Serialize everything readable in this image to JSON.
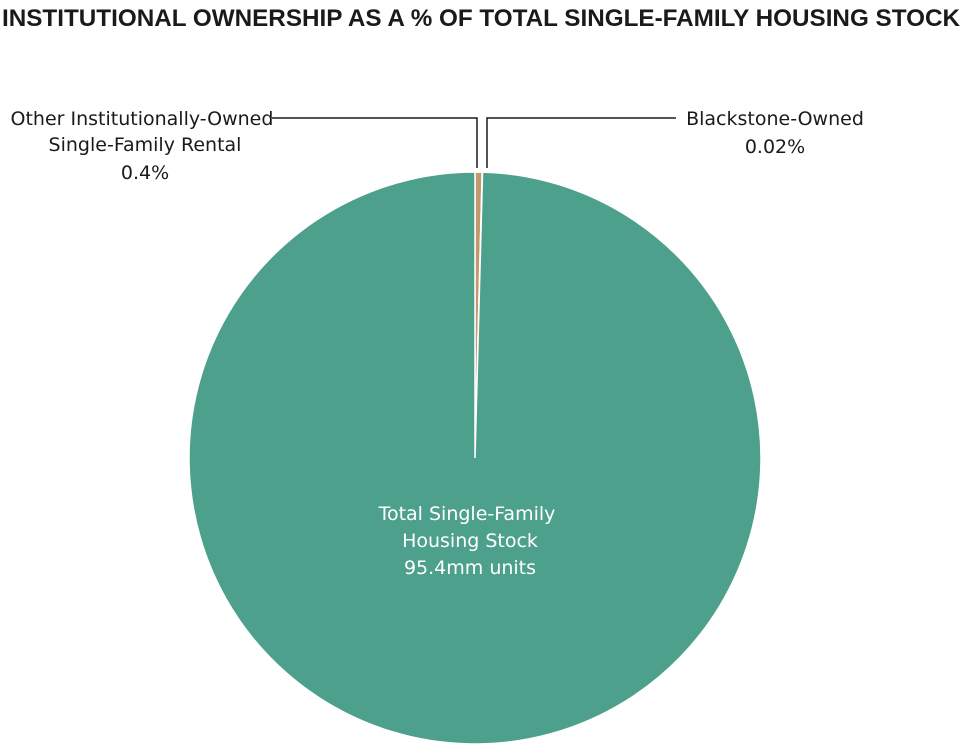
{
  "chart_data": {
    "type": "pie",
    "title": "INSTITUTIONAL OWNERSHIP AS A % OF TOTAL SINGLE-FAMILY HOUSING STOCK",
    "categories": [
      [
        "Other Institutionally-Owned",
        "Single-Family Rental"
      ],
      [
        "Blackstone-Owned"
      ],
      [
        "Total Single-Family",
        "Housing Stock"
      ]
    ],
    "values": [
      0.4,
      0.02,
      99.58
    ],
    "value_labels": [
      "0.4%",
      "0.02%",
      null
    ],
    "stock_label": "95.4mm units",
    "colors": [
      "#c4976d",
      "#2a62a8",
      "#4da08c"
    ]
  }
}
